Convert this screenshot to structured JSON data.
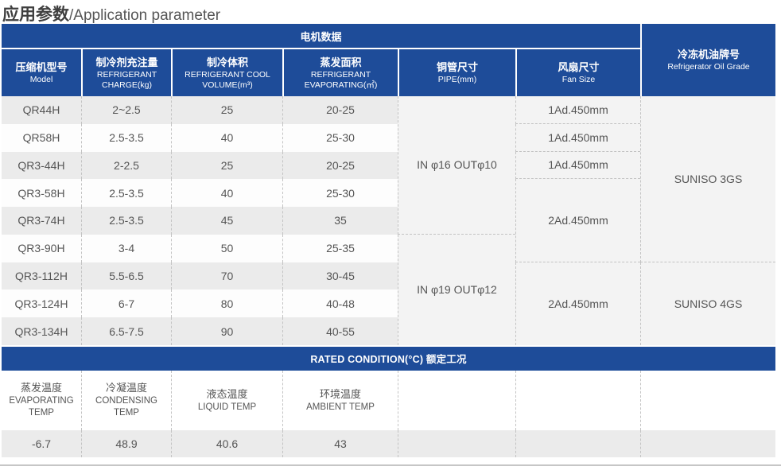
{
  "page": {
    "title_zh": "应用参数",
    "title_en": "/Application parameter"
  },
  "colors": {
    "header_blue": "#1e4c99",
    "stripe_gray": "#ebebeb",
    "panel_gray": "#f3f3f3"
  },
  "table": {
    "group_header": "电机数据",
    "columns": [
      {
        "zh": "压缩机型号",
        "en": "Model"
      },
      {
        "zh": "制冷剂充注量",
        "en": "REFRIGERANT CHARGE(kg)"
      },
      {
        "zh": "制冷体积",
        "en": "REFRIGERANT COOL VOLUME(m³)"
      },
      {
        "zh": "蒸发面积",
        "en": "REFRIGERANT EVAPORATING(㎡)"
      },
      {
        "zh": "铜管尺寸",
        "en": "PIPE(mm)"
      },
      {
        "zh": "风扇尺寸",
        "en": "Fan Size"
      },
      {
        "zh": "冷冻机油牌号",
        "en": "Refrigerator Oil Grade"
      }
    ],
    "rows": [
      {
        "model": "QR44H",
        "charge": "2~2.5",
        "volume": "25",
        "evap": "20-25"
      },
      {
        "model": "QR58H",
        "charge": "2.5-3.5",
        "volume": "40",
        "evap": "25-30"
      },
      {
        "model": "QR3-44H",
        "charge": "2-2.5",
        "volume": "25",
        "evap": "20-25"
      },
      {
        "model": "QR3-58H",
        "charge": "2.5-3.5",
        "volume": "40",
        "evap": "25-30"
      },
      {
        "model": "QR3-74H",
        "charge": "2.5-3.5",
        "volume": "45",
        "evap": "35"
      },
      {
        "model": "QR3-90H",
        "charge": "3-4",
        "volume": "50",
        "evap": "25-35"
      },
      {
        "model": "QR3-112H",
        "charge": "5.5-6.5",
        "volume": "70",
        "evap": "30-45"
      },
      {
        "model": "QR3-124H",
        "charge": "6-7",
        "volume": "80",
        "evap": "40-48"
      },
      {
        "model": "QR3-134H",
        "charge": "6.5-7.5",
        "volume": "90",
        "evap": "40-55"
      }
    ],
    "pipe": [
      "IN φ16 OUTφ10",
      "IN φ19 OUTφ12"
    ],
    "fan": [
      "1Ad.450mm",
      "1Ad.450mm",
      "1Ad.450mm",
      "2Ad.450mm",
      "2Ad.450mm"
    ],
    "oil": [
      "SUNISO 3GS",
      "SUNISO 4GS"
    ]
  },
  "rated": {
    "banner": "RATED CONDITION(°C) 额定工况",
    "columns": [
      {
        "zh": "蒸发温度",
        "en": "EVAPORATING TEMP",
        "value": "-6.7"
      },
      {
        "zh": "冷凝温度",
        "en": "CONDENSING TEMP",
        "value": "48.9"
      },
      {
        "zh": "液态温度",
        "en": "LIQUID TEMP",
        "value": "40.6"
      },
      {
        "zh": "环境温度",
        "en": "AMBIENT TEMP",
        "value": "43"
      }
    ]
  }
}
